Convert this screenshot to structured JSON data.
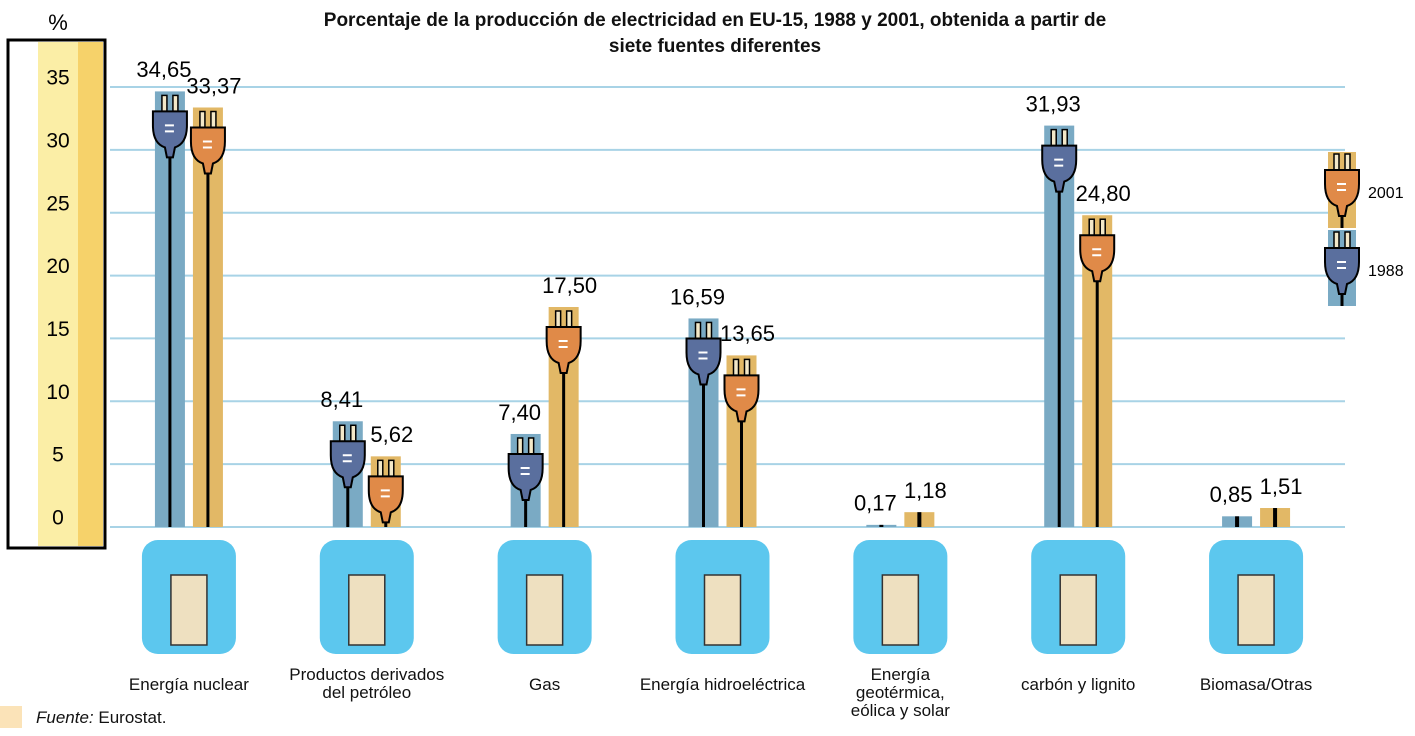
{
  "chart_data": {
    "type": "bar",
    "title": "Porcentaje de la producción de electricidad en EU-15, 1988 y 2001, obtenida a partir de siete fuentes diferentes",
    "y_label": "%",
    "categories": [
      "Energía nuclear",
      "Productos derivados del petróleo",
      "Gas",
      "Energía hidroeléctrica",
      "Energía geotérmica, eólica y solar",
      "carbón y lignito",
      "Biomasa/Otras"
    ],
    "series": [
      {
        "name": "1988",
        "color": "#7aaac4",
        "values": [
          34.65,
          8.41,
          7.4,
          16.59,
          0.17,
          31.93,
          0.85
        ],
        "value_labels": [
          "34,65",
          "8,41",
          "7,40",
          "16,59",
          "0,17",
          "31,93",
          "0,85"
        ]
      },
      {
        "name": "2001",
        "color": "#e2b866",
        "values": [
          33.37,
          5.62,
          17.5,
          13.65,
          1.18,
          24.8,
          1.51
        ],
        "value_labels": [
          "33,37",
          "5,62",
          "17,50",
          "13,65",
          "1,18",
          "24,80",
          "1,51"
        ]
      }
    ],
    "ylim": [
      0,
      35
    ],
    "yticks": [
      0,
      5,
      10,
      15,
      20,
      25,
      30,
      35
    ],
    "grid": true,
    "legend": "right",
    "source_label": "Fuente:",
    "source": "Eurostat."
  }
}
